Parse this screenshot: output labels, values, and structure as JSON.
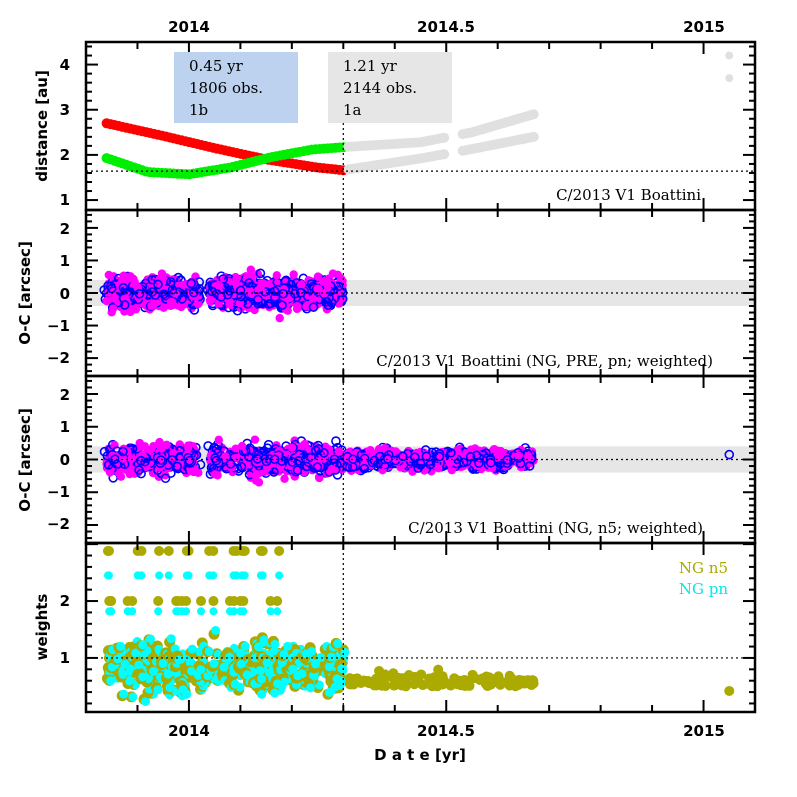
{
  "chart_data": {
    "type": "scatter",
    "title": "",
    "xlabel": "D a t e [yr]",
    "xlim": [
      2013.8,
      2015.1
    ],
    "x_ticks_major": [
      "2014",
      "2014.5",
      "2015"
    ],
    "x_ticks_major_values": [
      2014,
      2014.5,
      2015
    ],
    "split_epoch": 2014.3,
    "colors": {
      "dist_sun": "#ff0000",
      "dist_earth": "#00ee00",
      "future": "#e0e0e0",
      "pre_box": "#bcd2ee",
      "all_box": "#e6e6e6",
      "oc_filled": "#ff00ff",
      "oc_open": "#0000ff",
      "band": "#e6e6e6",
      "n5": "#aaaa00",
      "pn": "#00ffff"
    },
    "panels": [
      {
        "id": "distance",
        "ylabel": "distance [au]",
        "ylim": [
          0.78,
          4.5
        ],
        "y_ticks": [
          "1",
          "2",
          "3",
          "4"
        ],
        "y_ticks_values": [
          1,
          2,
          3,
          4
        ],
        "hline": 1.64,
        "annotation": "C/2013 V1 Boattini",
        "boxes": [
          {
            "lines": [
              "0.45 yr",
              "1806 obs.",
              "1b"
            ]
          },
          {
            "lines": [
              "1.21 yr",
              "2144 obs.",
              "1a"
            ]
          }
        ],
        "series": [
          {
            "name": "heliocentric",
            "x": [
              2013.84,
              2013.95,
              2014.05,
              2014.15,
              2014.25,
              2014.3
            ],
            "y": [
              2.7,
              2.42,
              2.15,
              1.9,
              1.72,
              1.66
            ]
          },
          {
            "name": "geocentric",
            "x": [
              2013.84,
              2013.92,
              2014.0,
              2014.08,
              2014.16,
              2014.24,
              2014.3
            ],
            "y": [
              1.93,
              1.62,
              1.57,
              1.72,
              1.95,
              2.12,
              2.17
            ]
          },
          {
            "name": "future-helio",
            "x": [
              2014.31,
              2014.45,
              2014.55,
              2014.67
            ],
            "y": [
              1.68,
              1.92,
              2.13,
              2.4
            ]
          },
          {
            "name": "future-geo",
            "x": [
              2014.31,
              2014.45,
              2014.55,
              2014.67
            ],
            "y": [
              2.18,
              2.28,
              2.5,
              2.9
            ]
          },
          {
            "name": "future-extra",
            "x": [
              2015.05,
              2015.05
            ],
            "y": [
              4.2,
              3.7
            ]
          }
        ]
      },
      {
        "id": "oc-pre",
        "ylabel": "O-C [arcsec]",
        "ylim": [
          -2.55,
          2.55
        ],
        "y_ticks": [
          "2",
          "1",
          "0",
          "−1",
          "−2"
        ],
        "y_ticks_values": [
          2,
          1,
          0,
          -1,
          -2
        ],
        "band": 0.4,
        "annotation": "C/2013 V1 Boattini (NG, PRE, pn; weighted)",
        "x_range": [
          2013.84,
          2014.3
        ]
      },
      {
        "id": "oc-all",
        "ylabel": "O-C [arcsec]",
        "ylim": [
          -2.55,
          2.55
        ],
        "y_ticks": [
          "2",
          "1",
          "0",
          "−1",
          "−2"
        ],
        "y_ticks_values": [
          2,
          1,
          0,
          -1,
          -2
        ],
        "band": 0.4,
        "annotation": "C/2013 V1 Boattini (NG, n5; weighted)",
        "x_range": [
          2013.84,
          2014.67
        ],
        "late_point": {
          "x": 2015.05,
          "y": 0.15
        }
      },
      {
        "id": "weights",
        "ylabel": "weights",
        "ylim": [
          0.05,
          3.02
        ],
        "y_ticks": [
          "1",
          "2"
        ],
        "y_ticks_values": [
          1,
          2
        ],
        "hline": 1.0,
        "legend": [
          {
            "label": "NG n5",
            "color": "#aaaa00"
          },
          {
            "label": "NG pn",
            "color": "#00ffff"
          }
        ],
        "legend_position": "top-right",
        "late_point": {
          "x": 2015.05,
          "y": 0.42
        }
      }
    ]
  }
}
